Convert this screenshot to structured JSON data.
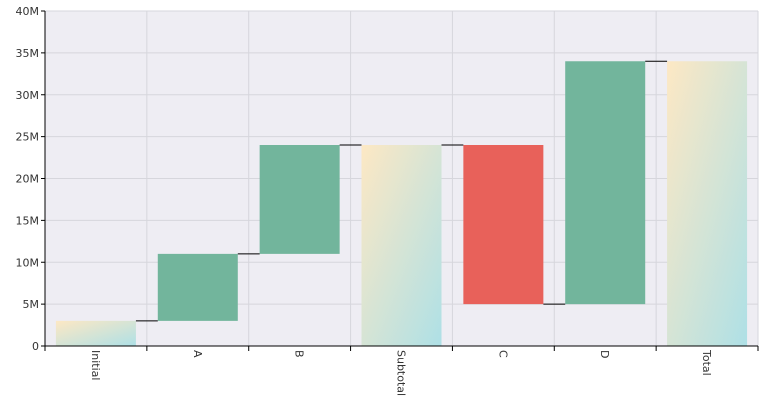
{
  "chart_data": {
    "type": "waterfall",
    "categories": [
      "Initial",
      "A",
      "B",
      "Subtotal",
      "C",
      "D",
      "Total"
    ],
    "bars": [
      {
        "category": "Initial",
        "kind": "total",
        "from": 0,
        "to": 3000000
      },
      {
        "category": "A",
        "kind": "increase",
        "from": 3000000,
        "to": 11000000
      },
      {
        "category": "B",
        "kind": "increase",
        "from": 11000000,
        "to": 24000000
      },
      {
        "category": "Subtotal",
        "kind": "total",
        "from": 0,
        "to": 24000000
      },
      {
        "category": "C",
        "kind": "decrease",
        "from": 24000000,
        "to": 5000000
      },
      {
        "category": "D",
        "kind": "increase",
        "from": 5000000,
        "to": 34000000
      },
      {
        "category": "Total",
        "kind": "total",
        "from": 0,
        "to": 34000000
      }
    ],
    "y_ticks": [
      {
        "value": 0,
        "label": "0"
      },
      {
        "value": 5000000,
        "label": "5M"
      },
      {
        "value": 10000000,
        "label": "10M"
      },
      {
        "value": 15000000,
        "label": "15M"
      },
      {
        "value": 20000000,
        "label": "20M"
      },
      {
        "value": 25000000,
        "label": "25M"
      },
      {
        "value": 30000000,
        "label": "30M"
      },
      {
        "value": 35000000,
        "label": "35M"
      },
      {
        "value": 40000000,
        "label": "40M"
      }
    ],
    "ylim": [
      0,
      40000000
    ],
    "grid": true,
    "title": "",
    "xlabel": "",
    "ylabel": "",
    "colors": {
      "increase": "#72b59c",
      "decrease": "#e8615a",
      "total_gradient_start": "#fde8c4",
      "total_gradient_end": "#aee0e6",
      "plot_background": "#eeedf3",
      "grid": "#d6d6dc",
      "axis": "#000000",
      "connector": "#000000"
    }
  }
}
